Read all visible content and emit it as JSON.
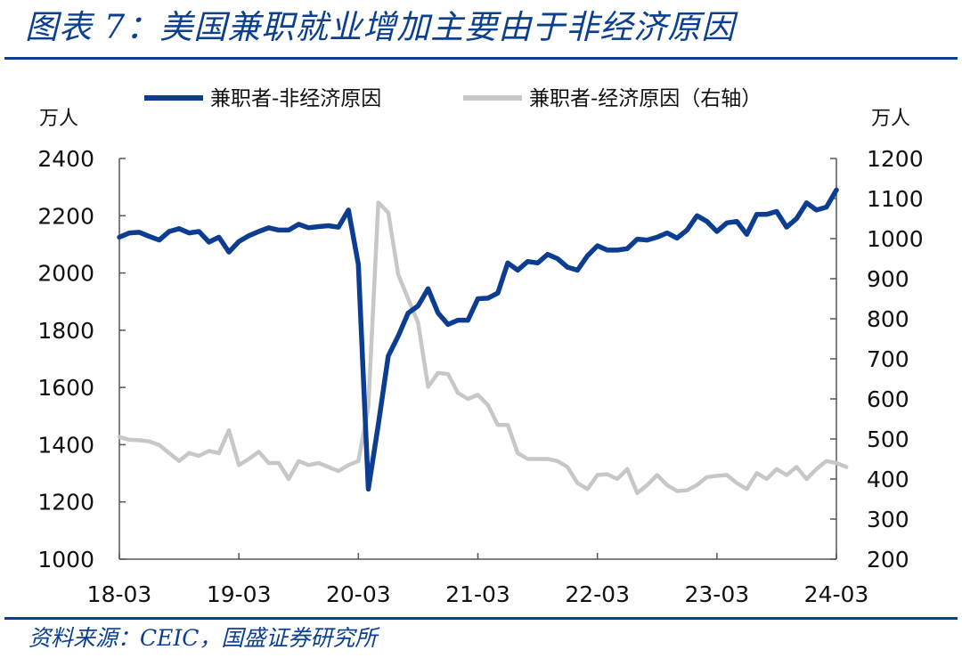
{
  "figure": {
    "title": "图表 7：美国兼职就业增加主要由于非经济原因",
    "source": "资料来源：CEIC，国盛证券研究所"
  },
  "chart_data": {
    "type": "line",
    "x_tick_labels": [
      "18-03",
      "19-03",
      "20-03",
      "21-03",
      "22-03",
      "23-03",
      "24-03"
    ],
    "x_range": [
      "2018-03",
      "2024-03"
    ],
    "left_axis": {
      "unit": "万人",
      "range": [
        1000,
        2400
      ],
      "ticks": [
        1000,
        1200,
        1400,
        1600,
        1800,
        2000,
        2200,
        2400
      ]
    },
    "right_axis": {
      "unit": "万人",
      "range": [
        200,
        1200
      ],
      "ticks": [
        200,
        300,
        400,
        500,
        600,
        700,
        800,
        900,
        1000,
        1100,
        1200
      ]
    },
    "grid": false,
    "legend_position": "top",
    "series": [
      {
        "name": "兼职者-非经济原因",
        "axis": "left",
        "color": "#0d3d91",
        "points": [
          [
            "2018-03",
            2125
          ],
          [
            "2018-04",
            2140
          ],
          [
            "2018-05",
            2142
          ],
          [
            "2018-06",
            2128
          ],
          [
            "2018-07",
            2115
          ],
          [
            "2018-08",
            2145
          ],
          [
            "2018-09",
            2155
          ],
          [
            "2018-10",
            2140
          ],
          [
            "2018-11",
            2145
          ],
          [
            "2018-12",
            2108
          ],
          [
            "2019-01",
            2125
          ],
          [
            "2019-02",
            2073
          ],
          [
            "2019-03",
            2110
          ],
          [
            "2019-04",
            2130
          ],
          [
            "2019-05",
            2145
          ],
          [
            "2019-06",
            2158
          ],
          [
            "2019-07",
            2150
          ],
          [
            "2019-08",
            2150
          ],
          [
            "2019-09",
            2170
          ],
          [
            "2019-10",
            2158
          ],
          [
            "2019-11",
            2162
          ],
          [
            "2019-12",
            2165
          ],
          [
            "2020-01",
            2160
          ],
          [
            "2020-02",
            2220
          ],
          [
            "2020-03",
            2030
          ],
          [
            "2020-04",
            1245
          ],
          [
            "2020-05",
            1470
          ],
          [
            "2020-06",
            1710
          ],
          [
            "2020-07",
            1780
          ],
          [
            "2020-08",
            1860
          ],
          [
            "2020-09",
            1885
          ],
          [
            "2020-10",
            1945
          ],
          [
            "2020-11",
            1860
          ],
          [
            "2020-12",
            1820
          ],
          [
            "2021-01",
            1835
          ],
          [
            "2021-02",
            1835
          ],
          [
            "2021-03",
            1910
          ],
          [
            "2021-04",
            1912
          ],
          [
            "2021-05",
            1930
          ],
          [
            "2021-06",
            2035
          ],
          [
            "2021-07",
            2010
          ],
          [
            "2021-08",
            2040
          ],
          [
            "2021-09",
            2035
          ],
          [
            "2021-10",
            2065
          ],
          [
            "2021-11",
            2050
          ],
          [
            "2021-12",
            2020
          ],
          [
            "2022-01",
            2010
          ],
          [
            "2022-02",
            2060
          ],
          [
            "2022-03",
            2095
          ],
          [
            "2022-04",
            2080
          ],
          [
            "2022-05",
            2080
          ],
          [
            "2022-06",
            2085
          ],
          [
            "2022-07",
            2118
          ],
          [
            "2022-08",
            2115
          ],
          [
            "2022-09",
            2125
          ],
          [
            "2022-10",
            2140
          ],
          [
            "2022-11",
            2122
          ],
          [
            "2022-12",
            2150
          ],
          [
            "2023-01",
            2200
          ],
          [
            "2023-02",
            2180
          ],
          [
            "2023-03",
            2145
          ],
          [
            "2023-04",
            2175
          ],
          [
            "2023-05",
            2180
          ],
          [
            "2023-06",
            2135
          ],
          [
            "2023-07",
            2205
          ],
          [
            "2023-08",
            2205
          ],
          [
            "2023-09",
            2215
          ],
          [
            "2023-10",
            2160
          ],
          [
            "2023-11",
            2190
          ],
          [
            "2023-12",
            2245
          ],
          [
            "2024-01",
            2220
          ],
          [
            "2024-02",
            2230
          ],
          [
            "2024-03",
            2290
          ]
        ]
      },
      {
        "name": "兼职者-经济原因（右轴）",
        "axis": "right",
        "color": "#c7c7c7",
        "points": [
          [
            "2018-03",
            505
          ],
          [
            "2018-04",
            498
          ],
          [
            "2018-05",
            497
          ],
          [
            "2018-06",
            494
          ],
          [
            "2018-07",
            485
          ],
          [
            "2018-08",
            465
          ],
          [
            "2018-09",
            445
          ],
          [
            "2018-10",
            465
          ],
          [
            "2018-11",
            458
          ],
          [
            "2018-12",
            470
          ],
          [
            "2019-01",
            465
          ],
          [
            "2019-02",
            522
          ],
          [
            "2019-03",
            435
          ],
          [
            "2019-04",
            450
          ],
          [
            "2019-05",
            468
          ],
          [
            "2019-06",
            440
          ],
          [
            "2019-07",
            440
          ],
          [
            "2019-08",
            400
          ],
          [
            "2019-09",
            445
          ],
          [
            "2019-10",
            435
          ],
          [
            "2019-11",
            440
          ],
          [
            "2019-12",
            430
          ],
          [
            "2020-01",
            420
          ],
          [
            "2020-02",
            435
          ],
          [
            "2020-03",
            445
          ],
          [
            "2020-04",
            580
          ],
          [
            "2020-05",
            1090
          ],
          [
            "2020-06",
            1065
          ],
          [
            "2020-07",
            910
          ],
          [
            "2020-08",
            850
          ],
          [
            "2020-09",
            790
          ],
          [
            "2020-10",
            630
          ],
          [
            "2020-11",
            665
          ],
          [
            "2020-12",
            662
          ],
          [
            "2021-01",
            615
          ],
          [
            "2021-02",
            600
          ],
          [
            "2021-03",
            610
          ],
          [
            "2021-04",
            585
          ],
          [
            "2021-05",
            535
          ],
          [
            "2021-06",
            535
          ],
          [
            "2021-07",
            465
          ],
          [
            "2021-08",
            450
          ],
          [
            "2021-09",
            450
          ],
          [
            "2021-10",
            450
          ],
          [
            "2021-11",
            445
          ],
          [
            "2021-12",
            430
          ],
          [
            "2022-01",
            390
          ],
          [
            "2022-02",
            375
          ],
          [
            "2022-03",
            410
          ],
          [
            "2022-04",
            412
          ],
          [
            "2022-05",
            400
          ],
          [
            "2022-06",
            425
          ],
          [
            "2022-07",
            365
          ],
          [
            "2022-08",
            385
          ],
          [
            "2022-09",
            410
          ],
          [
            "2022-10",
            385
          ],
          [
            "2022-11",
            370
          ],
          [
            "2022-12",
            372
          ],
          [
            "2023-01",
            385
          ],
          [
            "2023-02",
            405
          ],
          [
            "2023-03",
            408
          ],
          [
            "2023-04",
            410
          ],
          [
            "2023-05",
            390
          ],
          [
            "2023-06",
            375
          ],
          [
            "2023-07",
            415
          ],
          [
            "2023-08",
            400
          ],
          [
            "2023-09",
            425
          ],
          [
            "2023-10",
            410
          ],
          [
            "2023-11",
            430
          ],
          [
            "2023-12",
            400
          ],
          [
            "2024-01",
            425
          ],
          [
            "2024-02",
            445
          ],
          [
            "2024-03",
            440
          ],
          [
            "2024-04",
            430
          ]
        ]
      }
    ]
  }
}
